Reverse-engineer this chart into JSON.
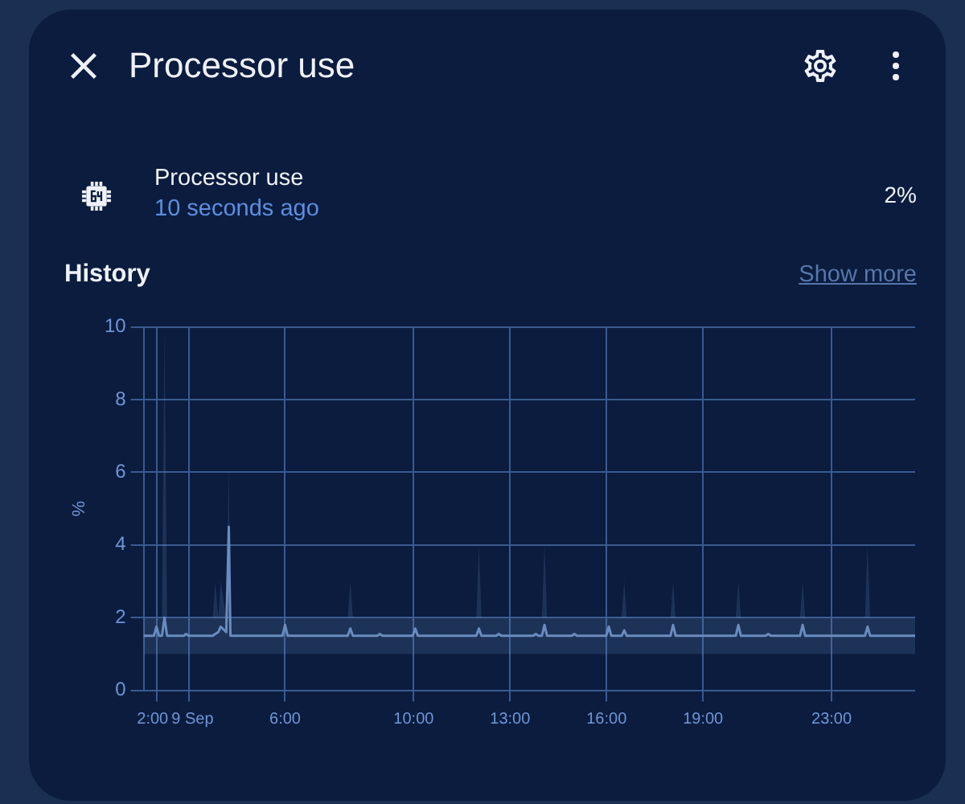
{
  "chart_data": {
    "type": "line",
    "title": "Processor use",
    "subtitle": "History",
    "ylabel": "%",
    "annotations": [
      "Processor use",
      "10 seconds ago",
      "2%",
      "Show more"
    ],
    "x": [
      1.6,
      1.92,
      2,
      2.08,
      2.17,
      2.25,
      2.33,
      2.85,
      2.92,
      3,
      3.75,
      3.83,
      3.92,
      4,
      4.17,
      4.25,
      4.3,
      5.92,
      6,
      6.08,
      7.95,
      8.03,
      8.11,
      8.87,
      8.95,
      9.03,
      9.97,
      10.05,
      10.13,
      11.95,
      12.03,
      12.11,
      12.57,
      12.65,
      12.73,
      13.72,
      13.8,
      13.88,
      13.99,
      14.07,
      14.15,
      14.92,
      15,
      15.08,
      15.99,
      16.07,
      16.15,
      16.47,
      16.55,
      16.63,
      17.99,
      18.07,
      18.15,
      20.02,
      20.1,
      20.18,
      20.95,
      21.03,
      21.11,
      22.02,
      22.1,
      22.18,
      24.04,
      24.12,
      24.2,
      25.6
    ],
    "series": [
      {
        "color": "#6a8cbf",
        "values": [
          1.5,
          1.5,
          1.75,
          1.5,
          1.5,
          2,
          1.5,
          1.5,
          1.55,
          1.5,
          1.5,
          1.55,
          1.6,
          1.75,
          1.6,
          4.5,
          1.5,
          1.5,
          1.8,
          1.5,
          1.5,
          1.7,
          1.5,
          1.5,
          1.55,
          1.5,
          1.5,
          1.7,
          1.5,
          1.5,
          1.7,
          1.5,
          1.5,
          1.55,
          1.5,
          1.5,
          1.55,
          1.5,
          1.5,
          1.8,
          1.5,
          1.5,
          1.55,
          1.5,
          1.5,
          1.75,
          1.5,
          1.5,
          1.65,
          1.5,
          1.5,
          1.8,
          1.5,
          1.5,
          1.8,
          1.5,
          1.5,
          1.55,
          1.5,
          1.5,
          1.8,
          1.5,
          1.5,
          1.75,
          1.5,
          1.5
        ],
        "lower": [
          1,
          1,
          1,
          1,
          1,
          1,
          1,
          1,
          1,
          1,
          1,
          1,
          1,
          1,
          1,
          1,
          1,
          1,
          1,
          1,
          1,
          1,
          1,
          1,
          1,
          1,
          1,
          1,
          1,
          1,
          1,
          1,
          1,
          1,
          1,
          1,
          1,
          1,
          1,
          1,
          1,
          1,
          1,
          1,
          1,
          1,
          1,
          1,
          1,
          1,
          1,
          1,
          1,
          1,
          1,
          1,
          1,
          1,
          1,
          1,
          1,
          1,
          1,
          1,
          1,
          1
        ],
        "upper": [
          2,
          2,
          2,
          2,
          2,
          10,
          2,
          2,
          2,
          2,
          2,
          3,
          2,
          3,
          2,
          6.2,
          2,
          2,
          2,
          2,
          2,
          3,
          2,
          2,
          2,
          2,
          2,
          2,
          2,
          2,
          4,
          2,
          2,
          2,
          2,
          2,
          2,
          2,
          2,
          4,
          2,
          2,
          2,
          2,
          2,
          2,
          2,
          2,
          3,
          2,
          2,
          3,
          2,
          2,
          3,
          2,
          2,
          2,
          2,
          2,
          3,
          2,
          2,
          4,
          2,
          2
        ]
      }
    ],
    "xlim": [
      1.6,
      25.6
    ],
    "xticks": [
      {
        "value": 2,
        "label": "2:00"
      },
      {
        "value": 3,
        "label": "9 Sep"
      },
      {
        "value": 6,
        "label": "6:00"
      },
      {
        "value": 10,
        "label": "10:00"
      },
      {
        "value": 13,
        "label": "13:00"
      },
      {
        "value": 16,
        "label": "16:00"
      },
      {
        "value": 19,
        "label": "19:00"
      },
      {
        "value": 23,
        "label": "23:00"
      }
    ],
    "ylim": [
      0,
      10
    ],
    "yticks": [
      0,
      2,
      4,
      6,
      8,
      10
    ],
    "grid": true,
    "marker": "none",
    "line_style": "solid"
  }
}
